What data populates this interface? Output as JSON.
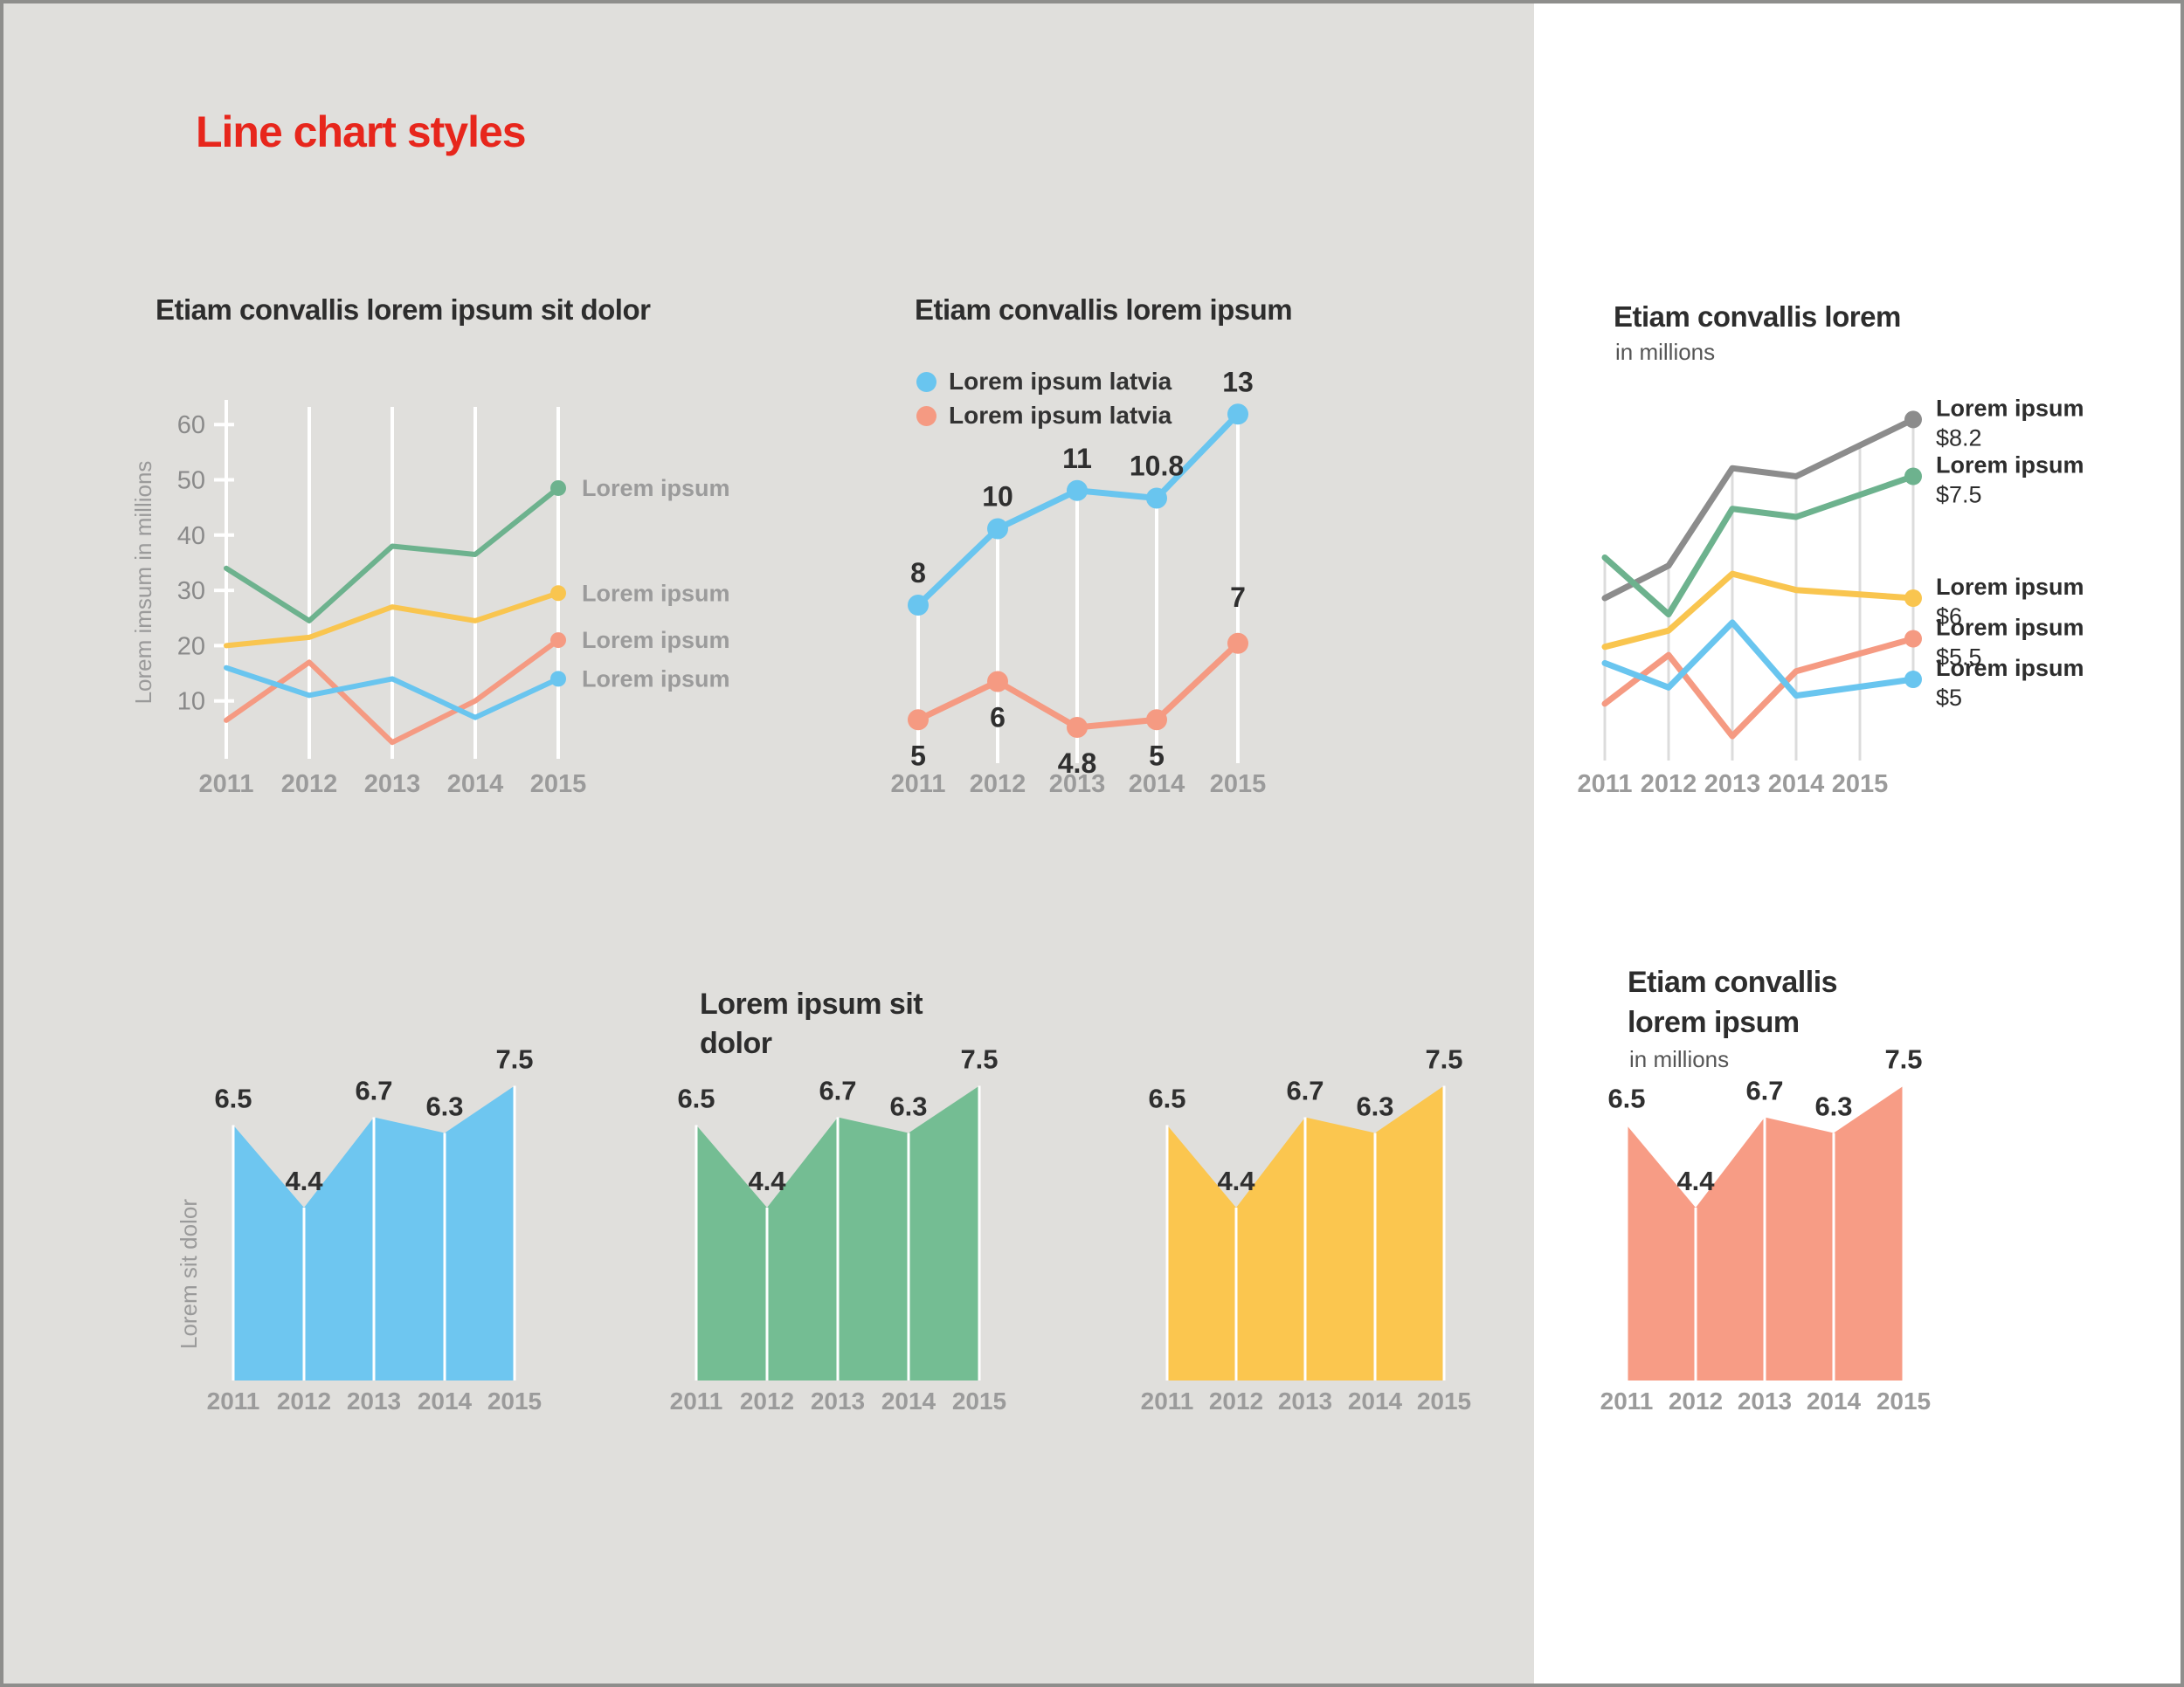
{
  "page": {
    "title": "Line chart styles",
    "accent_red": "#e7261c",
    "panel_gray": "#e0dfdc",
    "panel_white": "#ffffff",
    "border_color": "#8e8e8c",
    "text_dark": "#2d2d2d",
    "text_gray": "#9b9b9b"
  },
  "years": [
    "2011",
    "2012",
    "2013",
    "2014",
    "2015"
  ],
  "chart_data": [
    {
      "id": "multi-line",
      "type": "line",
      "title": "Etiam convallis lorem ipsum sit dolor",
      "ylabel": "Lorem imsum in millions",
      "y_ticks": [
        10,
        20,
        30,
        40,
        50,
        60
      ],
      "ylim": [
        0,
        60
      ],
      "grid": true,
      "legend_position": "right-of-line-ends",
      "x": [
        "2011",
        "2012",
        "2013",
        "2014",
        "2015"
      ],
      "series": [
        {
          "name": "Lorem ipsum",
          "color": "#6db28e",
          "values": [
            34,
            24.5,
            38,
            36.5,
            48.5
          ]
        },
        {
          "name": "Lorem ipsum",
          "color": "#f9c54f",
          "values": [
            20,
            21.5,
            27,
            24.5,
            29.5
          ]
        },
        {
          "name": "Lorem ipsum",
          "color": "#f59a82",
          "values": [
            6.5,
            17,
            2.5,
            10,
            21
          ]
        },
        {
          "name": "Lorem ipsum",
          "color": "#69c5ef",
          "values": [
            16,
            11,
            14,
            7,
            14
          ]
        }
      ]
    },
    {
      "id": "labeled-line",
      "type": "line",
      "title": "Etiam convallis lorem ipsum",
      "legend_position": "top-left",
      "legend": [
        {
          "label": "Lorem ipsum latvia",
          "color": "#69c5ef"
        },
        {
          "label": "Lorem ipsum latvia",
          "color": "#f59a82"
        }
      ],
      "x": [
        "2011",
        "2012",
        "2013",
        "2014",
        "2015"
      ],
      "series": [
        {
          "name": "Lorem ipsum latvia",
          "color": "#69c5ef",
          "values": [
            8,
            10,
            11,
            10.8,
            13
          ],
          "point_labels": [
            "8",
            "10",
            "11",
            "10.8",
            "13"
          ]
        },
        {
          "name": "Lorem ipsum latvia",
          "color": "#f59a82",
          "values": [
            5,
            6,
            4.8,
            5,
            7
          ],
          "point_labels": [
            "5",
            "6",
            "4.8",
            "5",
            "7"
          ]
        }
      ]
    },
    {
      "id": "annotated-line",
      "type": "line",
      "title": "Etiam convallis lorem",
      "subtitle": "in millions",
      "legend_position": "right-annotations",
      "x": [
        "2011",
        "2012",
        "2013",
        "2014",
        "2015"
      ],
      "series": [
        {
          "name": "Lorem ipsum",
          "end_label": "$8.2",
          "color": "#8c8c8c",
          "values": [
            6.0,
            6.4,
            7.6,
            7.5,
            8.2
          ]
        },
        {
          "name": "Lorem ipsum",
          "end_label": "$7.5",
          "color": "#6db28e",
          "values": [
            6.5,
            5.8,
            7.1,
            7.0,
            7.5
          ]
        },
        {
          "name": "Lorem ipsum",
          "end_label": "$6",
          "color": "#f9c54f",
          "values": [
            5.4,
            5.6,
            6.3,
            6.1,
            6.0
          ]
        },
        {
          "name": "Lorem ipsum",
          "end_label": "$5.5",
          "color": "#f59a82",
          "values": [
            4.7,
            5.3,
            4.3,
            5.1,
            5.5
          ]
        },
        {
          "name": "Lorem ipsum",
          "end_label": "$5",
          "color": "#69c5ef",
          "values": [
            5.2,
            4.9,
            5.7,
            4.8,
            5.0
          ]
        }
      ]
    },
    {
      "id": "area-blue",
      "type": "area",
      "title": "",
      "ylabel": "Lorem sit dolor",
      "color": "#6ec6f0",
      "x": [
        "2011",
        "2012",
        "2013",
        "2014",
        "2015"
      ],
      "values": [
        6.5,
        4.4,
        6.7,
        6.3,
        7.5
      ],
      "point_labels": [
        "6.5",
        "4.4",
        "6.7",
        "6.3",
        "7.5"
      ]
    },
    {
      "id": "area-green",
      "type": "area",
      "title_lines": [
        "Lorem ipsum sit",
        "dolor"
      ],
      "color": "#74bd93",
      "x": [
        "2011",
        "2012",
        "2013",
        "2014",
        "2015"
      ],
      "values": [
        6.5,
        4.4,
        6.7,
        6.3,
        7.5
      ],
      "point_labels": [
        "6.5",
        "4.4",
        "6.7",
        "6.3",
        "7.5"
      ]
    },
    {
      "id": "area-yellow",
      "type": "area",
      "title": "",
      "color": "#fbc64f",
      "x": [
        "2011",
        "2012",
        "2013",
        "2014",
        "2015"
      ],
      "values": [
        6.5,
        4.4,
        6.7,
        6.3,
        7.5
      ],
      "point_labels": [
        "6.5",
        "4.4",
        "6.7",
        "6.3",
        "7.5"
      ]
    },
    {
      "id": "area-salmon",
      "type": "area",
      "title_lines": [
        "Etiam convallis",
        "lorem ipsum"
      ],
      "subtitle": "in millions",
      "color": "#f79c85",
      "x": [
        "2011",
        "2012",
        "2013",
        "2014",
        "2015"
      ],
      "values": [
        6.5,
        4.4,
        6.7,
        6.3,
        7.5
      ],
      "point_labels": [
        "6.5",
        "4.4",
        "6.7",
        "6.3",
        "7.5"
      ]
    }
  ]
}
